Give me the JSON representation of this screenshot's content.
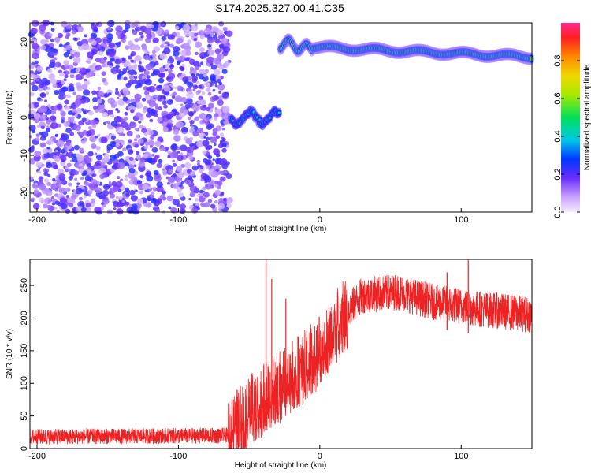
{
  "title": "S174.2025.327.00.41.C35",
  "chart_data": [
    {
      "type": "heatmap",
      "xlabel": "Height of straight line (km)",
      "ylabel": "Frequency (Hz)",
      "xlim": [
        -205,
        150
      ],
      "ylim": [
        -25,
        25
      ],
      "xticks": [
        -200,
        -100,
        0,
        100
      ],
      "yticks": [
        20,
        10,
        0,
        -10,
        -20
      ],
      "colorbar": {
        "label": "Normalized spectral amplitude",
        "range": [
          0,
          1
        ],
        "ticks": [
          0.0,
          0.2,
          0.4,
          0.6,
          0.8
        ]
      },
      "regions": [
        {
          "name": "noise",
          "x": [
            -205,
            -63
          ],
          "freq": [
            -25,
            25
          ],
          "amplitude": 0.2
        },
        {
          "name": "signal-near-zero",
          "x": [
            -63,
            -28
          ],
          "freq_center": 0,
          "amplitude": 0.35
        },
        {
          "name": "signal-high",
          "x": [
            -28,
            150
          ],
          "freq_start": 19,
          "freq_end": 16,
          "amplitude": 0.9
        }
      ]
    },
    {
      "type": "line",
      "xlabel": "Height of straight line (km)",
      "ylabel": "SNR (10 * v/v)",
      "xlim": [
        -205,
        150
      ],
      "ylim": [
        0,
        290
      ],
      "xticks": [
        -200,
        -100,
        0,
        100
      ],
      "yticks": [
        0,
        50,
        100,
        150,
        200,
        250
      ],
      "color": "#ee2222",
      "trend": [
        {
          "x": -205,
          "y": 18
        },
        {
          "x": -65,
          "y": 20
        },
        {
          "x": -55,
          "y": 50
        },
        {
          "x": -40,
          "y": 75
        },
        {
          "x": -20,
          "y": 110
        },
        {
          "x": 0,
          "y": 150
        },
        {
          "x": 15,
          "y": 200
        },
        {
          "x": 30,
          "y": 235
        },
        {
          "x": 55,
          "y": 240
        },
        {
          "x": 80,
          "y": 225
        },
        {
          "x": 110,
          "y": 215
        },
        {
          "x": 150,
          "y": 205
        }
      ],
      "spikes": [
        {
          "x": -38,
          "y": 290
        },
        {
          "x": -34,
          "y": 260
        },
        {
          "x": -24,
          "y": 230
        },
        {
          "x": 90,
          "y": 270
        },
        {
          "x": 105,
          "y": 290
        }
      ]
    }
  ]
}
